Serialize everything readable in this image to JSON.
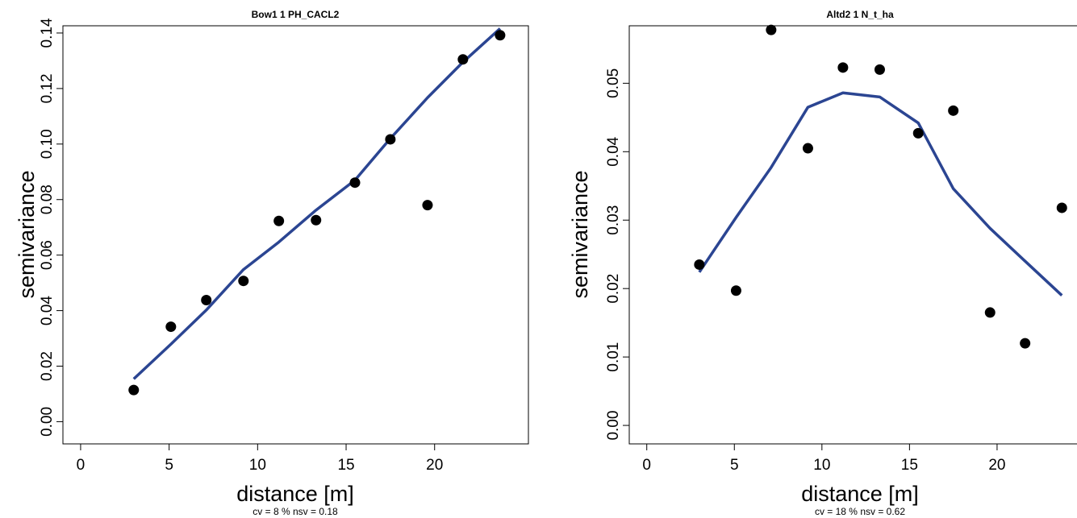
{
  "chart_data": [
    {
      "type": "scatter",
      "title": "Bow1 1 PH_CACL2",
      "xlabel": "distance [m]",
      "ylabel": "semivariance",
      "footnote": "cv = 8 % nsv = 0.18",
      "xlim": [
        -1,
        25.3
      ],
      "ylim": [
        -0.008,
        0.1426
      ],
      "x_ticks": [
        0,
        5,
        10,
        15,
        20
      ],
      "y_ticks": [
        0.0,
        0.02,
        0.04,
        0.06,
        0.08,
        0.1,
        0.12,
        0.14
      ],
      "y_tick_labels": [
        "0.00",
        "0.02",
        "0.04",
        "0.06",
        "0.08",
        "0.10",
        "0.12",
        "0.14"
      ],
      "grid": false,
      "series": [
        {
          "kind": "points",
          "color": "#000000",
          "x": [
            3.0,
            5.1,
            7.1,
            9.2,
            11.2,
            13.3,
            15.5,
            17.5,
            19.6,
            21.6,
            23.7
          ],
          "y": [
            0.0114,
            0.0342,
            0.0438,
            0.0507,
            0.0723,
            0.0726,
            0.0861,
            0.1017,
            0.078,
            0.1305,
            0.1392
          ]
        },
        {
          "kind": "line",
          "color": "#2b4592",
          "x": [
            3.0,
            5.1,
            7.1,
            9.2,
            11.2,
            13.3,
            15.5,
            17.5,
            19.6,
            21.6,
            23.7
          ],
          "y": [
            0.0154,
            0.0279,
            0.0402,
            0.0548,
            0.0647,
            0.0762,
            0.087,
            0.102,
            0.1167,
            0.1295,
            0.1416
          ]
        }
      ]
    },
    {
      "type": "scatter",
      "title": "Altd2 1 N_t_ha",
      "xlabel": "distance [m]",
      "ylabel": "semivariance",
      "footnote": "cv = 18 % nsv = 0.62",
      "xlim": [
        -1,
        25.3
      ],
      "ylim": [
        -0.0027,
        0.0584
      ],
      "x_ticks": [
        0,
        5,
        10,
        15,
        20
      ],
      "y_ticks": [
        0.0,
        0.01,
        0.02,
        0.03,
        0.04,
        0.05
      ],
      "y_tick_labels": [
        "0.00",
        "0.01",
        "0.02",
        "0.03",
        "0.04",
        "0.05"
      ],
      "grid": false,
      "series": [
        {
          "kind": "points",
          "color": "#000000",
          "x": [
            3.0,
            5.1,
            7.1,
            9.2,
            11.2,
            13.3,
            15.5,
            17.5,
            19.6,
            21.6,
            23.7
          ],
          "y": [
            0.0235,
            0.0197,
            0.0578,
            0.0405,
            0.0523,
            0.052,
            0.0427,
            0.046,
            0.0165,
            0.012,
            0.0318
          ]
        },
        {
          "kind": "line",
          "color": "#2b4592",
          "x": [
            3.0,
            5.1,
            7.1,
            9.2,
            11.2,
            13.3,
            15.5,
            17.5,
            19.6,
            21.6,
            23.7
          ],
          "y": [
            0.0224,
            0.0304,
            0.0377,
            0.0465,
            0.0486,
            0.048,
            0.0442,
            0.0346,
            0.0288,
            0.024,
            0.019
          ]
        }
      ]
    }
  ]
}
